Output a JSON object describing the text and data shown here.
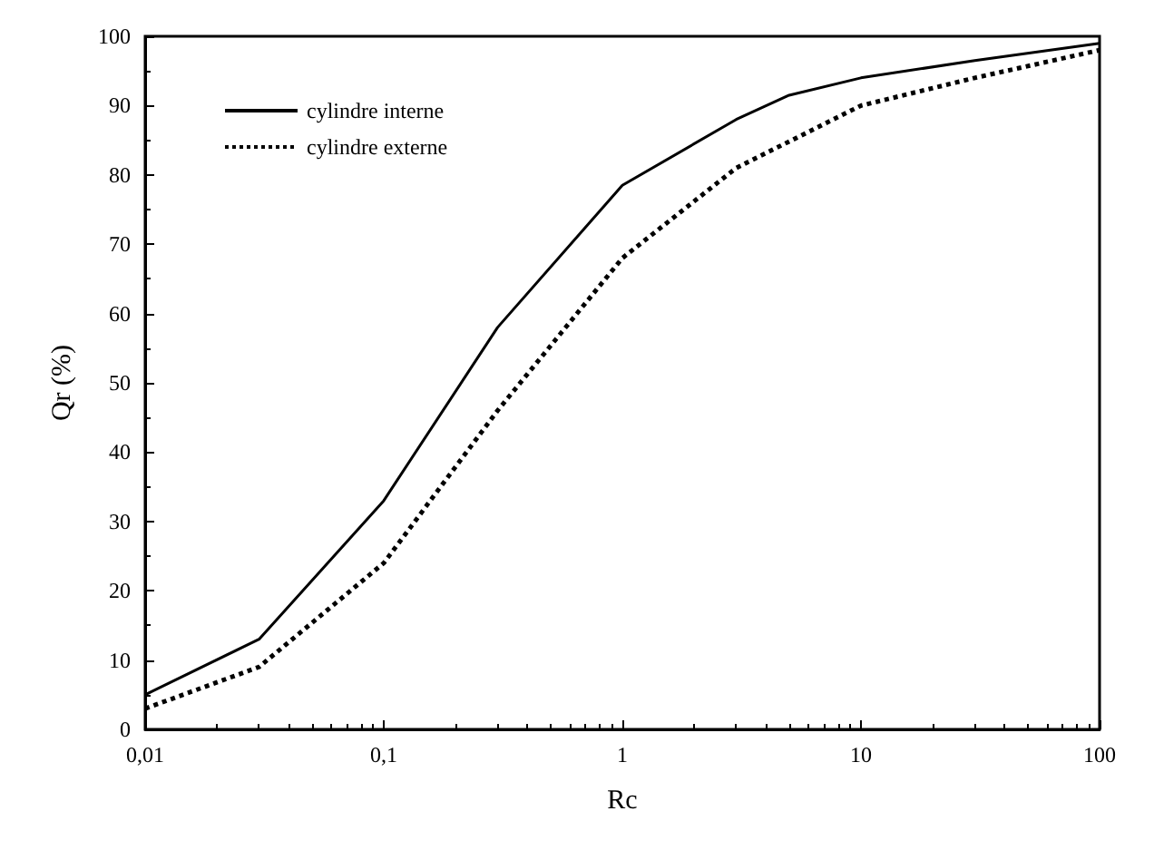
{
  "chart_data": {
    "type": "line",
    "xlabel": "Rc",
    "ylabel": "Qr (%)",
    "log": "x",
    "xlim": [
      0.01,
      100
    ],
    "xticks": [
      {
        "value": 0.01,
        "label": "0,01"
      },
      {
        "value": 0.1,
        "label": "0,1"
      },
      1,
      10,
      100
    ],
    "ylim": [
      0,
      100
    ],
    "yticks": [
      0,
      10,
      20,
      30,
      40,
      50,
      60,
      70,
      80,
      90,
      100
    ],
    "grid": false,
    "legend": "top left",
    "marker": "none",
    "series": [
      {
        "name": "cylindre interne",
        "color": "#000000",
        "line_style": "solid",
        "x": [
          0.01,
          0.03,
          0.1,
          0.3,
          1,
          3,
          5,
          10,
          30,
          100
        ],
        "values": [
          5,
          13,
          33,
          58,
          78.5,
          88,
          91.5,
          94,
          96.5,
          99
        ]
      },
      {
        "name": "cylindre externe",
        "color": "#000000",
        "line_style": "dotted",
        "x": [
          0.01,
          0.03,
          0.1,
          0.3,
          1,
          3,
          10,
          30,
          100
        ],
        "values": [
          3,
          9,
          24,
          46,
          68,
          81,
          90,
          94,
          98
        ]
      }
    ]
  }
}
